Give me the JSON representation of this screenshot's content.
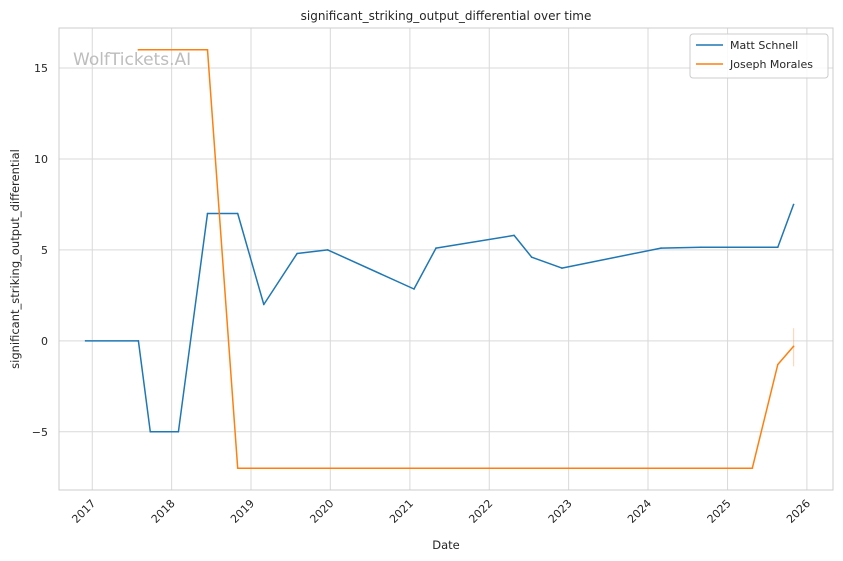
{
  "watermark": "WolfTickets.AI",
  "chart_data": {
    "type": "line",
    "title": "significant_striking_output_differential over time",
    "xlabel": "Date",
    "ylabel": "significant_striking_output_differential",
    "x_axis_type": "date",
    "xlim": [
      "2016-08-01",
      "2026-05-01"
    ],
    "ylim": [
      -8.2,
      17.2
    ],
    "x_ticks": [
      "2017",
      "2018",
      "2019",
      "2020",
      "2021",
      "2022",
      "2023",
      "2024",
      "2025",
      "2026"
    ],
    "y_ticks": [
      -5,
      0,
      5,
      10,
      15
    ],
    "y_tick_labels": [
      "−5",
      "0",
      "5",
      "10",
      "15"
    ],
    "grid": true,
    "legend_position": "top-right",
    "series": [
      {
        "name": "Matt Schnell",
        "color": "#1f77b4",
        "points": [
          {
            "x": "2016-12-01",
            "y": 0
          },
          {
            "x": "2017-08-01",
            "y": 0
          },
          {
            "x": "2017-09-25",
            "y": -5
          },
          {
            "x": "2018-02-01",
            "y": -5
          },
          {
            "x": "2018-06-15",
            "y": 7
          },
          {
            "x": "2018-11-01",
            "y": 7
          },
          {
            "x": "2019-03-01",
            "y": 2
          },
          {
            "x": "2019-08-01",
            "y": 4.8
          },
          {
            "x": "2019-12-20",
            "y": 5
          },
          {
            "x": "2021-01-20",
            "y": 2.85
          },
          {
            "x": "2021-05-01",
            "y": 5.1
          },
          {
            "x": "2022-04-25",
            "y": 5.8
          },
          {
            "x": "2022-07-15",
            "y": 4.6
          },
          {
            "x": "2022-12-01",
            "y": 4
          },
          {
            "x": "2024-03-01",
            "y": 5.1
          },
          {
            "x": "2024-09-01",
            "y": 5.15
          },
          {
            "x": "2025-08-20",
            "y": 5.15
          },
          {
            "x": "2025-11-01",
            "y": 7.5
          }
        ]
      },
      {
        "name": "Joseph Morales",
        "color": "#ff7f0e",
        "points": [
          {
            "x": "2017-08-01",
            "y": 16
          },
          {
            "x": "2018-06-15",
            "y": 16
          },
          {
            "x": "2018-11-01",
            "y": -7
          },
          {
            "x": "2025-04-25",
            "y": -7
          },
          {
            "x": "2025-08-20",
            "y": -1.3
          },
          {
            "x": "2025-11-01",
            "y": -0.3
          }
        ],
        "error_bar": {
          "x": "2025-11-01",
          "low": -1.4,
          "high": 0.7
        }
      }
    ]
  }
}
